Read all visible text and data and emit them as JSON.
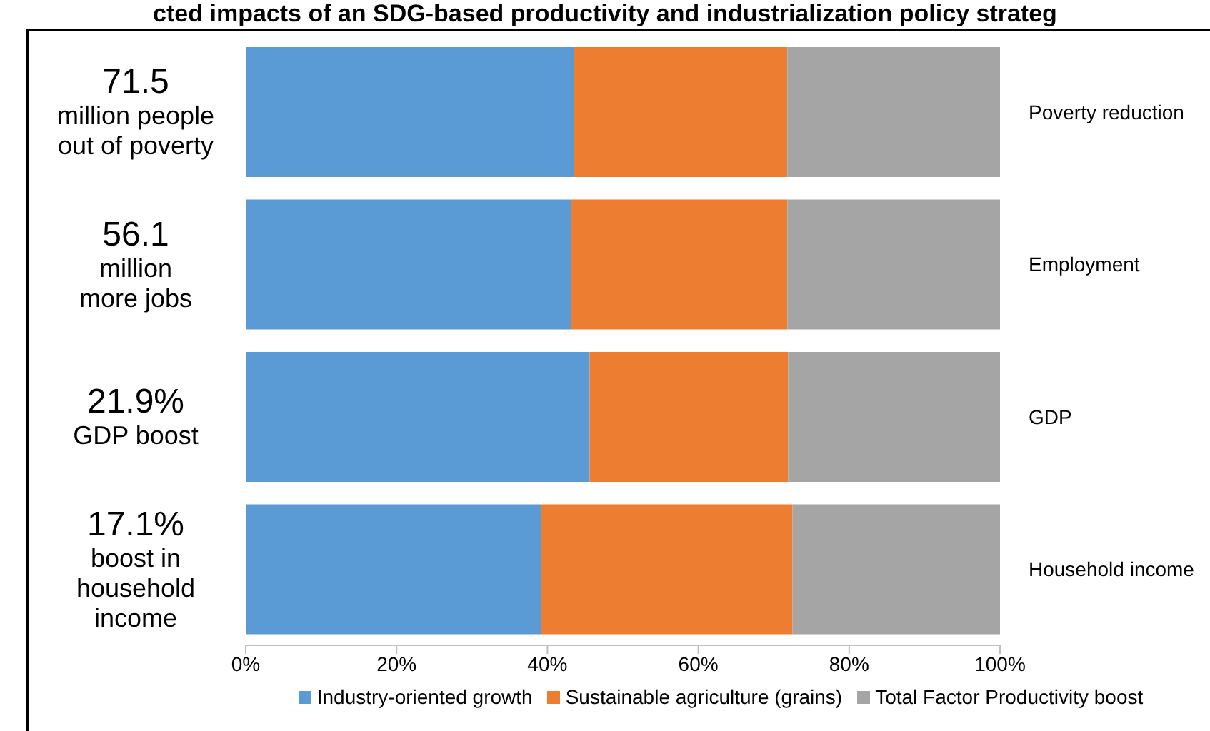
{
  "chart_data": {
    "type": "bar",
    "orientation": "horizontal",
    "stacked": true,
    "title": "cted impacts of an SDG-based productivity and industrialization policy strateg",
    "categories": [
      "Poverty reduction",
      "Employment",
      "GDP",
      "Household income"
    ],
    "series": [
      {
        "name": "Industry-oriented growth",
        "color": "#5b9bd5",
        "values": [
          43.5,
          43.1,
          45.6,
          39.2
        ]
      },
      {
        "name": "Sustainable agriculture (grains)",
        "color": "#ed7d31",
        "values": [
          28.3,
          28.7,
          26.3,
          33.3
        ]
      },
      {
        "name": "Total Factor Productivity boost",
        "color": "#a5a5a5",
        "values": [
          28.2,
          28.2,
          28.1,
          27.5
        ]
      }
    ],
    "xlim": [
      0,
      100
    ],
    "xticks": [
      {
        "value": 0,
        "label": "0%"
      },
      {
        "value": 20,
        "label": "20%"
      },
      {
        "value": 40,
        "label": "40%"
      },
      {
        "value": 60,
        "label": "60%"
      },
      {
        "value": 80,
        "label": "80%"
      },
      {
        "value": 100,
        "label": "100%"
      }
    ],
    "annotations": [
      "71.5\nmillion people\nout of poverty",
      "56.1\nmillion\nmore jobs",
      "21.9%\nGDP boost",
      "17.1%\nboost in\nhousehold\nincome"
    ],
    "legend": "bottom",
    "grid": false
  }
}
